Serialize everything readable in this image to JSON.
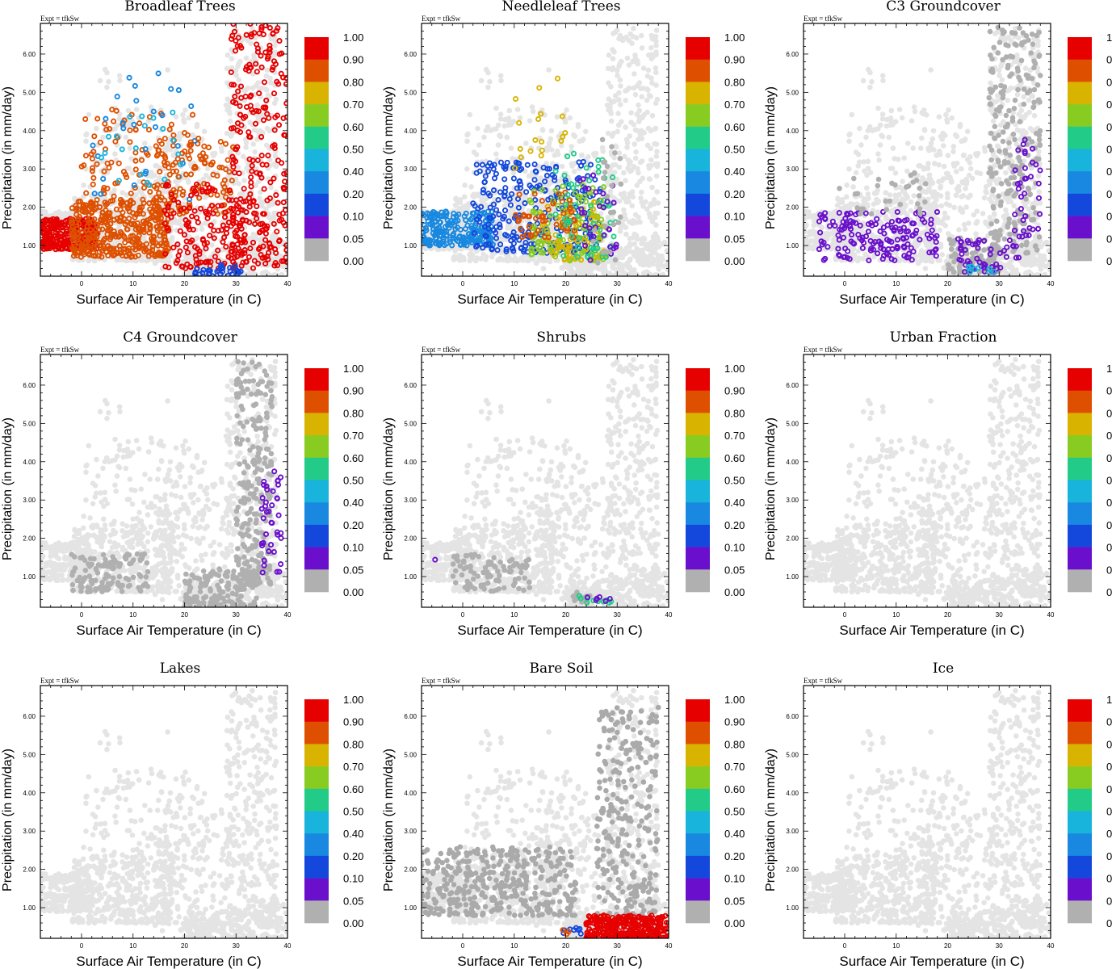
{
  "figure": {
    "expt_label": "Expt = tfkSw",
    "xlabel": "Surface Air Temperature (in C)",
    "ylabel": "Precipitation (in mm/day)",
    "x_ticks": [
      "0",
      "10",
      "20",
      "30",
      "40"
    ],
    "y_ticks": [
      "1.00",
      "2.00",
      "3.00",
      "4.00",
      "5.00",
      "6.00"
    ],
    "colorbar_labels": [
      "1.00",
      "0.90",
      "0.80",
      "0.70",
      "0.60",
      "0.50",
      "0.40",
      "0.20",
      "0.10",
      "0.05",
      "0.00"
    ],
    "colorbar_colors": [
      "#e60000",
      "#de5000",
      "#d8b400",
      "#88cc22",
      "#22cc88",
      "#18b4dc",
      "#1888e0",
      "#1448dc",
      "#6a10cc",
      "#b0b0b0"
    ],
    "background_point_color": "#e4e4e4",
    "zero_point_color": "#aaaaaa"
  },
  "chart_data": [
    {
      "type": "scatter",
      "title": "Broadleaf Trees",
      "xlabel": "Surface Air Temperature (in C)",
      "ylabel": "Precipitation (in mm/day)",
      "xlim": [
        -8,
        40
      ],
      "ylim": [
        0.2,
        6.8
      ],
      "clusters": [
        {
          "x": [
            -8,
            3
          ],
          "y": [
            0.9,
            1.7
          ],
          "n": 260,
          "color": "#e60000"
        },
        {
          "x": [
            -2,
            17
          ],
          "y": [
            0.7,
            2.2
          ],
          "n": 380,
          "color": "#de5000"
        },
        {
          "x": [
            0,
            24
          ],
          "y": [
            1.9,
            4.6
          ],
          "n": 120,
          "color": "#de5000"
        },
        {
          "x": [
            2,
            22
          ],
          "y": [
            2.2,
            5.8
          ],
          "n": 28,
          "color": "#1888e0"
        },
        {
          "x": [
            3,
            20
          ],
          "y": [
            2.5,
            4.5
          ],
          "n": 22,
          "color": "#18b4dc"
        },
        {
          "x": [
            14,
            30
          ],
          "y": [
            1.8,
            3.8
          ],
          "n": 90,
          "color": "#de5000"
        },
        {
          "x": [
            16,
            32
          ],
          "y": [
            0.4,
            2.6
          ],
          "n": 150,
          "color": "#e60000"
        },
        {
          "x": [
            29,
            40
          ],
          "y": [
            0.4,
            6.8
          ],
          "n": 260,
          "color": "#e60000"
        },
        {
          "x": [
            22,
            31
          ],
          "y": [
            0.2,
            0.5
          ],
          "n": 35,
          "color": "#1448dc"
        }
      ]
    },
    {
      "type": "scatter",
      "title": "Needleleaf Trees",
      "xlabel": "Surface Air Temperature (in C)",
      "ylabel": "Precipitation (in mm/day)",
      "xlim": [
        -8,
        40
      ],
      "ylim": [
        0.2,
        6.8
      ],
      "clusters": [
        {
          "x": [
            -8,
            6
          ],
          "y": [
            1.0,
            1.9
          ],
          "n": 220,
          "color": "#1888e0"
        },
        {
          "x": [
            2,
            27
          ],
          "y": [
            0.8,
            3.2
          ],
          "n": 260,
          "color": "#1448dc"
        },
        {
          "x": [
            13,
            28
          ],
          "y": [
            0.6,
            2.6
          ],
          "n": 120,
          "color": "#88cc22"
        },
        {
          "x": [
            15,
            28
          ],
          "y": [
            0.6,
            2.2
          ],
          "n": 70,
          "color": "#d8b400"
        },
        {
          "x": [
            10,
            22
          ],
          "y": [
            1.2,
            2.4
          ],
          "n": 50,
          "color": "#de5000"
        },
        {
          "x": [
            10,
            20
          ],
          "y": [
            3.0,
            5.9
          ],
          "n": 18,
          "color": "#d8b400"
        },
        {
          "x": [
            18,
            30
          ],
          "y": [
            0.6,
            3.4
          ],
          "n": 60,
          "color": "#22cc88"
        },
        {
          "x": [
            22,
            30
          ],
          "y": [
            0.6,
            3.0
          ],
          "n": 30,
          "color": "#6a10cc"
        },
        {
          "x": [
            25,
            31
          ],
          "y": [
            0.5,
            4.0
          ],
          "n": 25,
          "color": "#b0b0b0"
        }
      ]
    },
    {
      "type": "scatter",
      "title": "C3 Groundcover",
      "xlabel": "Surface Air Temperature (in C)",
      "ylabel": "Precipitation (in mm/day)",
      "xlim": [
        -8,
        40
      ],
      "ylim": [
        0.2,
        6.8
      ],
      "clusters": [
        {
          "x": [
            -5,
            18
          ],
          "y": [
            0.6,
            1.9
          ],
          "n": 160,
          "color": "#6a10cc"
        },
        {
          "x": [
            -2,
            16
          ],
          "y": [
            1.8,
            2.9
          ],
          "n": 30,
          "color": "#b0b0b0"
        },
        {
          "x": [
            28,
            38
          ],
          "y": [
            0.8,
            6.7
          ],
          "n": 240,
          "color": "#b0b0b0"
        },
        {
          "x": [
            20,
            30
          ],
          "y": [
            0.3,
            1.2
          ],
          "n": 80,
          "color": "#b0b0b0"
        },
        {
          "x": [
            22,
            34
          ],
          "y": [
            0.3,
            1.2
          ],
          "n": 50,
          "color": "#6a10cc"
        },
        {
          "x": [
            24,
            29
          ],
          "y": [
            0.3,
            0.5
          ],
          "n": 10,
          "color": "#18b4dc"
        },
        {
          "x": [
            33,
            38
          ],
          "y": [
            1.2,
            3.8
          ],
          "n": 35,
          "color": "#6a10cc"
        }
      ]
    },
    {
      "type": "scatter",
      "title": "C4 Groundcover",
      "xlabel": "Surface Air Temperature (in C)",
      "ylabel": "Precipitation (in mm/day)",
      "xlim": [
        -8,
        40
      ],
      "ylim": [
        0.2,
        6.8
      ],
      "clusters": [
        {
          "x": [
            -2,
            13
          ],
          "y": [
            0.6,
            1.6
          ],
          "n": 120,
          "color": "#b0b0b0"
        },
        {
          "x": [
            20,
            34
          ],
          "y": [
            0.2,
            1.2
          ],
          "n": 150,
          "color": "#b0b0b0"
        },
        {
          "x": [
            30,
            37
          ],
          "y": [
            0.8,
            6.7
          ],
          "n": 240,
          "color": "#b0b0b0"
        },
        {
          "x": [
            35,
            39
          ],
          "y": [
            0.9,
            4.0
          ],
          "n": 40,
          "color": "#6a10cc"
        }
      ]
    },
    {
      "type": "scatter",
      "title": "Shrubs",
      "xlabel": "Surface Air Temperature (in C)",
      "ylabel": "Precipitation (in mm/day)",
      "xlim": [
        -8,
        40
      ],
      "ylim": [
        0.2,
        6.8
      ],
      "clusters": [
        {
          "x": [
            -2,
            13
          ],
          "y": [
            0.6,
            1.6
          ],
          "n": 100,
          "color": "#b0b0b0"
        },
        {
          "x": [
            21,
            29
          ],
          "y": [
            0.3,
            0.6
          ],
          "n": 16,
          "color": "#b0b0b0"
        },
        {
          "x": [
            22,
            29
          ],
          "y": [
            0.3,
            0.5
          ],
          "n": 10,
          "color": "#22cc88"
        },
        {
          "x": [
            24,
            29
          ],
          "y": [
            0.3,
            0.5
          ],
          "n": 6,
          "color": "#6a10cc"
        },
        {
          "x": [
            -6,
            -5
          ],
          "y": [
            1.4,
            1.5
          ],
          "n": 1,
          "color": "#6a10cc"
        }
      ]
    },
    {
      "type": "scatter",
      "title": "Urban Fraction",
      "xlabel": "Surface Air Temperature (in C)",
      "ylabel": "Precipitation (in mm/day)",
      "xlim": [
        -8,
        40
      ],
      "ylim": [
        0.2,
        6.8
      ],
      "clusters": []
    },
    {
      "type": "scatter",
      "title": "Lakes",
      "xlabel": "Surface Air Temperature (in C)",
      "ylabel": "Precipitation (in mm/day)",
      "xlim": [
        -8,
        40
      ],
      "ylim": [
        0.2,
        6.8
      ],
      "clusters": []
    },
    {
      "type": "scatter",
      "title": "Bare Soil",
      "xlabel": "Surface Air Temperature (in C)",
      "ylabel": "Precipitation (in mm/day)",
      "xlim": [
        -8,
        40
      ],
      "ylim": [
        0.2,
        6.8
      ],
      "clusters": [
        {
          "x": [
            -8,
            22
          ],
          "y": [
            0.8,
            2.6
          ],
          "n": 380,
          "color": "#aaaaaa"
        },
        {
          "x": [
            26,
            38
          ],
          "y": [
            0.6,
            6.3
          ],
          "n": 280,
          "color": "#aaaaaa"
        },
        {
          "x": [
            24,
            40
          ],
          "y": [
            0.2,
            0.8
          ],
          "n": 320,
          "color": "#e60000"
        },
        {
          "x": [
            19,
            24
          ],
          "y": [
            0.3,
            0.5
          ],
          "n": 8,
          "color": "#1448dc"
        },
        {
          "x": [
            19,
            21
          ],
          "y": [
            0.3,
            0.5
          ],
          "n": 3,
          "color": "#de5000"
        }
      ]
    },
    {
      "type": "scatter",
      "title": "Ice",
      "xlabel": "Surface Air Temperature (in C)",
      "ylabel": "Precipitation (in mm/day)",
      "xlim": [
        -8,
        40
      ],
      "ylim": [
        0.2,
        6.8
      ],
      "clusters": []
    }
  ]
}
